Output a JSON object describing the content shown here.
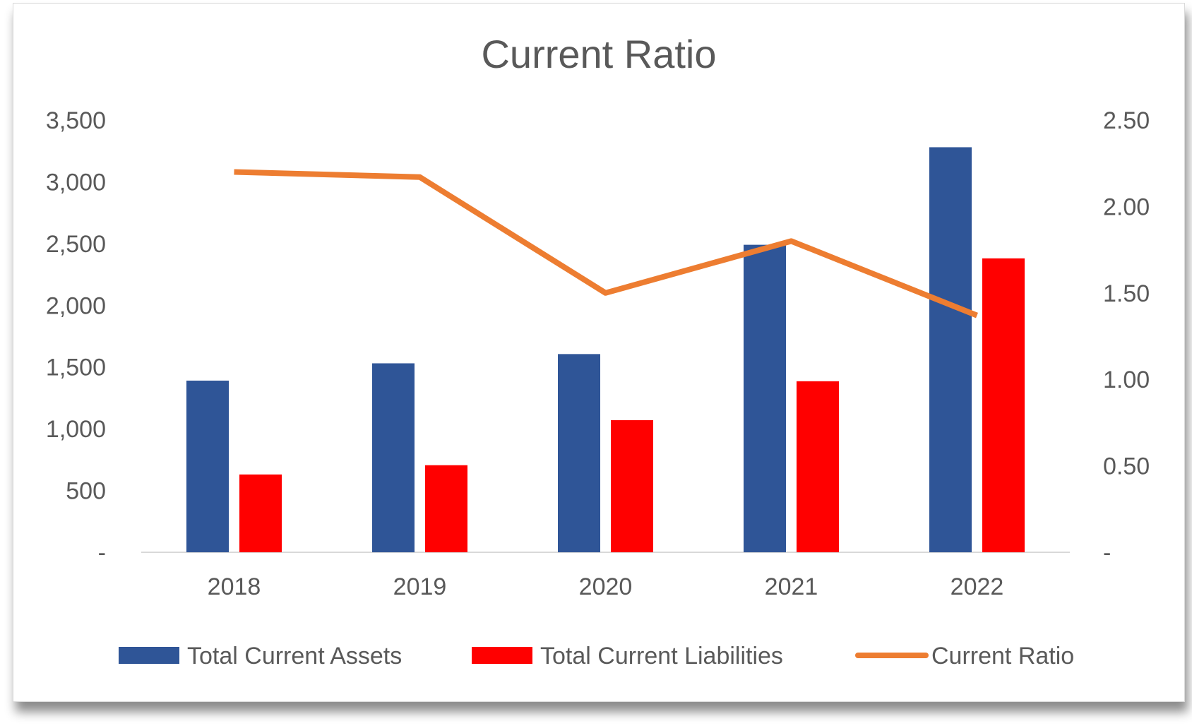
{
  "chart_data": {
    "type": "bar",
    "title": "Current Ratio",
    "categories": [
      "2018",
      "2019",
      "2020",
      "2021",
      "2022"
    ],
    "series": [
      {
        "name": "Total Current Assets",
        "type": "bar",
        "axis": "left",
        "color": "#2F5597",
        "values": [
          1390,
          1530,
          1605,
          2490,
          3280
        ]
      },
      {
        "name": "Total Current Liabilities",
        "type": "bar",
        "axis": "left",
        "color": "#FF0000",
        "values": [
          630,
          705,
          1070,
          1385,
          2380
        ]
      },
      {
        "name": "Current Ratio",
        "type": "line",
        "axis": "right",
        "color": "#ED7D31",
        "values": [
          2.2,
          2.17,
          1.5,
          1.8,
          1.37
        ]
      }
    ],
    "left_axis": {
      "ylim": [
        0,
        3500
      ],
      "ticks": [
        0,
        500,
        1000,
        1500,
        2000,
        2500,
        3000,
        3500
      ],
      "tick_labels": [
        "-",
        "500",
        "1,000",
        "1,500",
        "2,000",
        "2,500",
        "3,000",
        "3,500"
      ]
    },
    "right_axis": {
      "ylim": [
        0,
        2.5
      ],
      "ticks": [
        0,
        0.5,
        1.0,
        1.5,
        2.0,
        2.5
      ],
      "tick_labels": [
        "-",
        "0.50",
        "1.00",
        "1.50",
        "2.00",
        "2.50"
      ]
    },
    "grid": false,
    "legend_position": "bottom"
  }
}
